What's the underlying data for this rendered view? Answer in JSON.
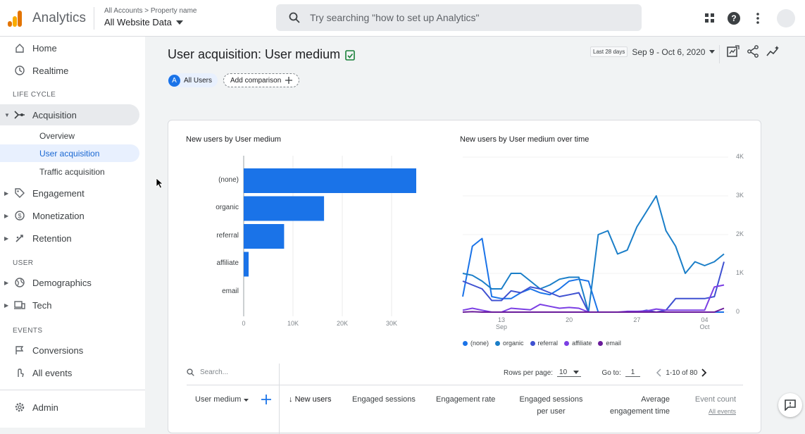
{
  "topbar": {
    "app_name": "Analytics",
    "account_path": "All Accounts > Property name",
    "account_name": "All Website Data",
    "search_placeholder": "Try searching \"how to set up Analytics\""
  },
  "sidebar": {
    "home": "Home",
    "realtime": "Realtime",
    "section_lifecycle": "LIFE CYCLE",
    "acquisition": "Acquisition",
    "overview": "Overview",
    "user_acquisition": "User acquisition",
    "traffic_acquisition": "Traffic acquisition",
    "engagement": "Engagement",
    "monetization": "Monetization",
    "retention": "Retention",
    "section_user": "USER",
    "demographics": "Demographics",
    "tech": "Tech",
    "section_events": "EVENTS",
    "conversions": "Conversions",
    "all_events": "All events",
    "admin": "Admin"
  },
  "header": {
    "title": "User acquisition: User medium",
    "date_chip": "Last 28 days",
    "date_range": "Sep 9 - Oct 6, 2020",
    "user_chip_letter": "A",
    "user_chip": "All Users",
    "add_comparison": "Add comparison"
  },
  "colors": {
    "bar": "#1a73e8",
    "none": "#1a73e8",
    "organic": "#1a7ec8",
    "referral": "#3f51d1",
    "affiliate": "#7b3fe4",
    "email": "#6a1b9a"
  },
  "chart_data": [
    {
      "type": "bar",
      "title": "New users by User medium",
      "categories": [
        "(none)",
        "organic",
        "referral",
        "affiliate",
        "email"
      ],
      "values": [
        35000,
        16300,
        8200,
        1000,
        0
      ],
      "xticks": [
        "0",
        "10K",
        "20K",
        "30K"
      ],
      "xlim": [
        0,
        40000
      ],
      "grid": true
    },
    {
      "type": "line",
      "title": "New users by User medium over time",
      "x": [
        "Sep 9",
        "Sep 10",
        "Sep 11",
        "Sep 12",
        "Sep 13",
        "Sep 14",
        "Sep 15",
        "Sep 16",
        "Sep 17",
        "Sep 18",
        "Sep 19",
        "Sep 20",
        "Sep 21",
        "Sep 22",
        "Sep 23",
        "Sep 24",
        "Sep 25",
        "Sep 26",
        "Sep 27",
        "Sep 28",
        "Sep 29",
        "Sep 30",
        "Oct 1",
        "Oct 2",
        "Oct 3",
        "Oct 4",
        "Oct 5",
        "Oct 6"
      ],
      "xticks": [
        {
          "label": "13",
          "sub": "Sep"
        },
        {
          "label": "20",
          "sub": ""
        },
        {
          "label": "27",
          "sub": ""
        },
        {
          "label": "04",
          "sub": "Oct"
        }
      ],
      "yticks": [
        "0",
        "1K",
        "2K",
        "3K",
        "4K"
      ],
      "ylim": [
        0,
        4000
      ],
      "series": [
        {
          "name": "(none)",
          "color": "#1a73e8",
          "values": [
            400,
            1700,
            1900,
            400,
            350,
            350,
            500,
            600,
            500,
            450,
            600,
            800,
            850,
            800,
            0,
            0,
            0,
            0,
            0,
            0,
            0,
            0,
            0,
            0,
            0,
            0,
            0,
            0
          ]
        },
        {
          "name": "organic",
          "color": "#1a7ec8",
          "values": [
            1000,
            950,
            800,
            600,
            600,
            1000,
            1000,
            800,
            600,
            700,
            850,
            900,
            900,
            0,
            2000,
            2100,
            1500,
            1600,
            2200,
            2600,
            3000,
            2100,
            1700,
            1000,
            1300,
            1200,
            1300,
            1500
          ]
        },
        {
          "name": "referral",
          "color": "#3f51d1",
          "values": [
            800,
            700,
            600,
            300,
            300,
            550,
            500,
            650,
            600,
            500,
            400,
            450,
            500,
            0,
            0,
            0,
            0,
            0,
            0,
            50,
            0,
            50,
            350,
            350,
            350,
            350,
            400,
            1300
          ]
        },
        {
          "name": "affiliate",
          "color": "#7b3fe4",
          "values": [
            50,
            100,
            50,
            0,
            0,
            100,
            80,
            60,
            200,
            150,
            100,
            120,
            100,
            0,
            0,
            0,
            0,
            20,
            20,
            30,
            80,
            50,
            50,
            50,
            50,
            50,
            650,
            700
          ]
        },
        {
          "name": "email",
          "color": "#6a1b9a",
          "values": [
            0,
            10,
            0,
            0,
            0,
            0,
            0,
            0,
            0,
            0,
            0,
            0,
            0,
            0,
            0,
            0,
            0,
            0,
            0,
            0,
            0,
            0,
            0,
            0,
            0,
            0,
            0,
            100
          ]
        }
      ]
    }
  ],
  "table": {
    "search_placeholder": "Search...",
    "rows_per_page_label": "Rows per page:",
    "rows_per_page_value": "10",
    "goto_label": "Go to:",
    "goto_value": "1",
    "page_range": "1-10 of 80",
    "dimension_header": "User medium",
    "col_new_users": "New users",
    "col_engaged_sessions": "Engaged sessions",
    "col_engagement_rate": "Engagement rate",
    "col_engaged_per_user_1": "Engaged sessions",
    "col_engaged_per_user_2": "per user",
    "col_avg_time_1": "Average",
    "col_avg_time_2": "engagement time",
    "col_event_count_1": "Event count",
    "col_event_count_2": "All events"
  }
}
